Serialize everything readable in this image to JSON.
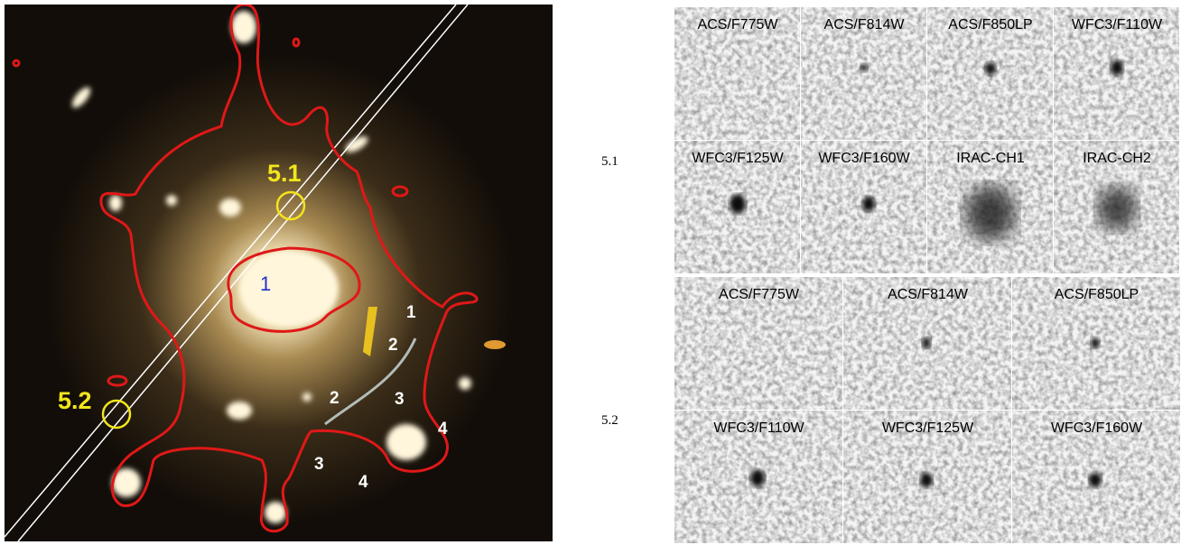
{
  "left_panel": {
    "labels": [
      "5.1",
      "5.2",
      "1",
      "1",
      "2",
      "2",
      "3",
      "3",
      "4",
      "4"
    ]
  },
  "right_panel": {
    "groups": [
      {
        "label": "5.1",
        "rows": [
          [
            "ACS/F775W",
            "ACS/F814W",
            "ACS/F850LP",
            "WFC3/F110W"
          ],
          [
            "WFC3/F125W",
            "WFC3/F160W",
            "IRAC-CH1",
            "IRAC-CH2"
          ]
        ]
      },
      {
        "label": "5.2",
        "rows": [
          [
            "ACS/F775W",
            "ACS/F814W",
            "ACS/F850LP"
          ],
          [
            "WFC3/F110W",
            "WFC3/F125W",
            "WFC3/F160W"
          ]
        ]
      }
    ]
  }
}
